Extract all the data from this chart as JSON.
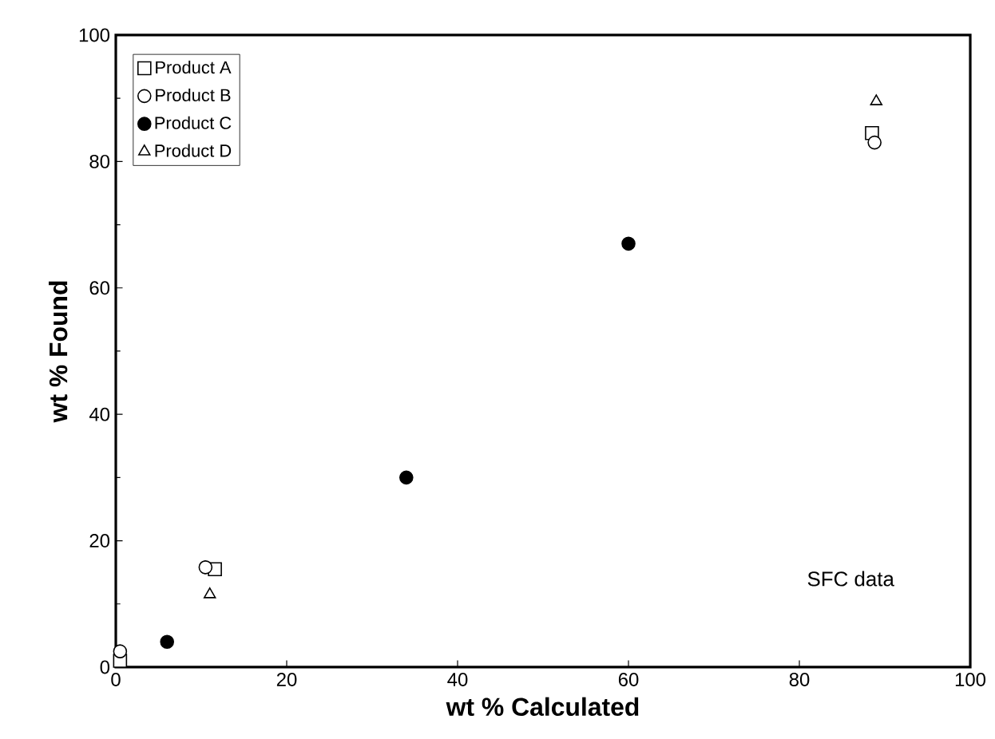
{
  "chart_data": {
    "type": "scatter",
    "xlabel": "wt % Calculated",
    "ylabel": "wt % Found",
    "xlim": [
      0,
      100
    ],
    "ylim": [
      0,
      100
    ],
    "xticks": [
      0,
      20,
      40,
      60,
      80,
      100
    ],
    "yticks": [
      0,
      20,
      40,
      60,
      80,
      100
    ],
    "legend": "top left",
    "grid": false,
    "annotations": [
      "SFC data"
    ],
    "series": [
      {
        "name": "Product A",
        "color": "#000000",
        "marker": "square",
        "x": [
          0.5,
          11.6,
          88.5
        ],
        "values": [
          1,
          15.5,
          84.5
        ]
      },
      {
        "name": "Product B",
        "color": "#000000",
        "marker": "circle",
        "x": [
          0.5,
          10.5,
          88.8
        ],
        "values": [
          2.5,
          15.8,
          83
        ]
      },
      {
        "name": "Product C",
        "color": "#000000",
        "marker": "circle",
        "x": [
          6,
          34,
          60
        ],
        "values": [
          4,
          30,
          67
        ]
      },
      {
        "name": "Product D",
        "color": "#000000",
        "marker": "triangle",
        "x": [
          11,
          89
        ],
        "values": [
          11.5,
          89.5
        ]
      }
    ]
  }
}
